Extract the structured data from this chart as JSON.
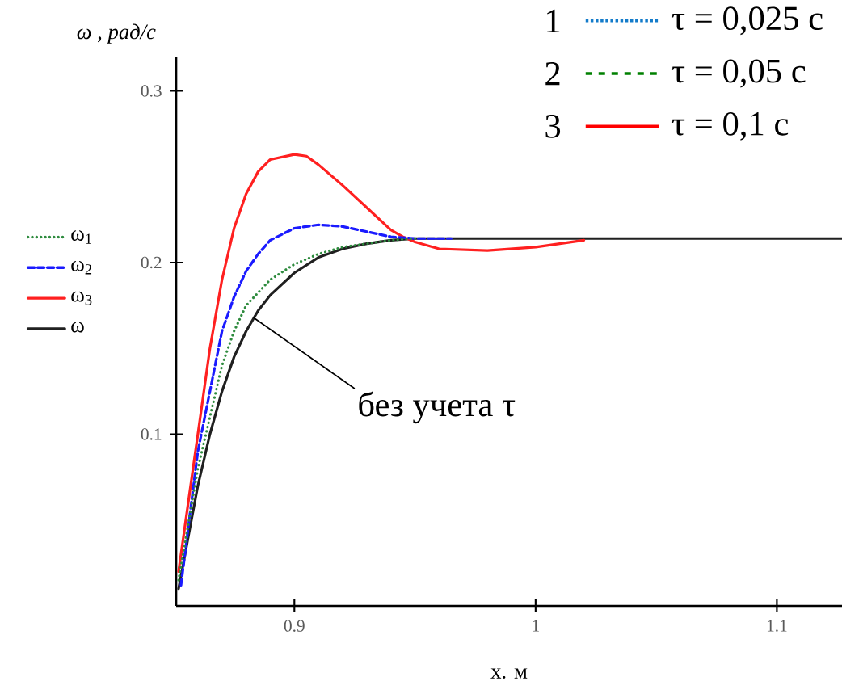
{
  "chart_data": {
    "type": "line",
    "xlabel": "x. м",
    "ylabel": "*ω , рад/с*",
    "xlim": [
      0.851,
      1.127
    ],
    "ylim": [
      0,
      0.32
    ],
    "xticks": [
      0.9,
      1,
      1.1
    ],
    "yticks": [
      0.1,
      0.2,
      0.3
    ],
    "grid": false,
    "legend": "left",
    "series": [
      {
        "name": "ω$_{1}$",
        "color": "#2e8b3e",
        "line_style": "dotted",
        "x": [
          0.852,
          0.86,
          0.865,
          0.87,
          0.875,
          0.88,
          0.89,
          0.9,
          0.91,
          0.92,
          0.94,
          0.95
        ],
        "values": [
          0.015,
          0.08,
          0.11,
          0.14,
          0.16,
          0.175,
          0.19,
          0.199,
          0.205,
          0.209,
          0.213,
          0.214
        ]
      },
      {
        "name": "ω$_{2}$",
        "color": "#1a1aff",
        "line_style": "dashed",
        "x": [
          0.853,
          0.86,
          0.865,
          0.87,
          0.875,
          0.88,
          0.885,
          0.89,
          0.9,
          0.91,
          0.92,
          0.93,
          0.94,
          0.95,
          0.965
        ],
        "values": [
          0.012,
          0.09,
          0.125,
          0.16,
          0.18,
          0.195,
          0.205,
          0.213,
          0.22,
          0.222,
          0.221,
          0.218,
          0.215,
          0.214,
          0.214
        ]
      },
      {
        "name": "ω$_{3}$",
        "color": "#ff2020",
        "line_style": "solid",
        "x": [
          0.852,
          0.86,
          0.865,
          0.87,
          0.875,
          0.88,
          0.885,
          0.89,
          0.9,
          0.905,
          0.91,
          0.92,
          0.93,
          0.94,
          0.945,
          0.95,
          0.96,
          0.98,
          1.0,
          1.01,
          1.02
        ],
        "values": [
          0.02,
          0.1,
          0.15,
          0.19,
          0.22,
          0.24,
          0.253,
          0.26,
          0.263,
          0.262,
          0.257,
          0.245,
          0.232,
          0.219,
          0.215,
          0.212,
          0.208,
          0.207,
          0.209,
          0.211,
          0.213
        ]
      },
      {
        "name": "ω",
        "color": "#202020",
        "line_style": "solid",
        "x": [
          0.852,
          0.856,
          0.86,
          0.865,
          0.87,
          0.875,
          0.88,
          0.885,
          0.89,
          0.9,
          0.91,
          0.92,
          0.93,
          0.94,
          0.95,
          1.127
        ],
        "values": [
          0.01,
          0.04,
          0.07,
          0.1,
          0.125,
          0.145,
          0.16,
          0.172,
          0.181,
          0.194,
          0.203,
          0.208,
          0.211,
          0.213,
          0.214,
          0.214
        ]
      }
    ],
    "annotations": [
      "1",
      "τ = 0,025 с",
      "2",
      "τ = 0,05 с",
      "3",
      "τ = 0,1 с",
      {
        "text": "без учета τ",
        "x": 0.883,
        "y": 0.168
      }
    ]
  }
}
